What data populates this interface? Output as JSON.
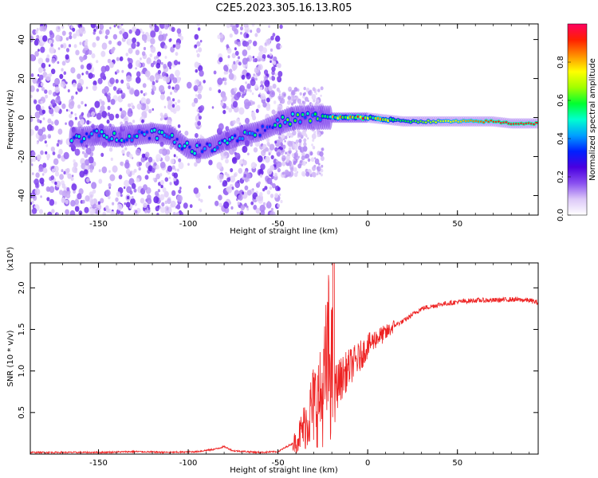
{
  "figure_title": "C2E5.2023.305.16.13.R05",
  "chart_data": [
    {
      "type": "heatmap",
      "title": "C2E5.2023.305.16.13.R05",
      "xlabel": "Height of straight line (km)",
      "ylabel": "Frequency (Hz)",
      "xlim": [
        -188,
        95
      ],
      "ylim": [
        -50,
        48
      ],
      "xticks": [
        -150,
        -100,
        -50,
        0,
        50
      ],
      "yticks": [
        -40,
        -20,
        0,
        20,
        40
      ],
      "colorbar": {
        "label": "Normalized spectral amplitude",
        "range": [
          0,
          1
        ],
        "ticks": [
          0.0,
          0.2,
          0.4,
          0.6,
          0.8
        ],
        "colormap": [
          "#ffffff",
          "#dcc8f8",
          "#8a50f0",
          "#4a00e0",
          "#0020ff",
          "#00a0ff",
          "#00ffd0",
          "#00ff30",
          "#a0ff00",
          "#ffff00",
          "#ff9000",
          "#ff2000",
          "#ff0060"
        ]
      },
      "ridge": {
        "x": [
          -160,
          -150,
          -140,
          -130,
          -120,
          -110,
          -100,
          -90,
          -80,
          -70,
          -60,
          -50,
          -40,
          -30,
          -20,
          -10,
          0,
          10,
          20,
          30,
          40,
          50,
          60,
          70,
          80,
          95
        ],
        "y": [
          -10,
          -9,
          -10,
          -9,
          -8,
          -9,
          -16,
          -16,
          -12,
          -9,
          -7,
          -3,
          0,
          0,
          0,
          0,
          0,
          -1,
          -2,
          -2,
          -2,
          -2,
          -2,
          -2,
          -3,
          -3
        ]
      },
      "grid": false,
      "legend": "none"
    },
    {
      "type": "line",
      "title": "",
      "xlabel": "Height of straight line (km)",
      "ylabel": "SNR (10 * v/v)",
      "scale_note": "(x10⁴)",
      "xlim": [
        -188,
        95
      ],
      "ylim": [
        0,
        2.3
      ],
      "xticks": [
        -150,
        -100,
        -50,
        0,
        50
      ],
      "yticks": [
        0.5,
        1.0,
        1.5,
        2.0
      ],
      "line_color": "#ee2222",
      "series": [
        {
          "x": [
            -188,
            -170,
            -150,
            -130,
            -110,
            -95,
            -85,
            -80,
            -75,
            -60,
            -50,
            -40,
            -35,
            -30,
            -25,
            -22,
            -20,
            -18,
            -15,
            -10,
            -5,
            0,
            5,
            10,
            15,
            20,
            25,
            30,
            40,
            50,
            60,
            70,
            80,
            90,
            95
          ],
          "values": [
            0.02,
            0.02,
            0.02,
            0.03,
            0.02,
            0.03,
            0.06,
            0.09,
            0.04,
            0.02,
            0.03,
            0.15,
            0.35,
            0.6,
            0.7,
            1.2,
            1.0,
            0.8,
            0.9,
            1.05,
            1.15,
            1.3,
            1.4,
            1.45,
            1.55,
            1.6,
            1.68,
            1.75,
            1.8,
            1.83,
            1.85,
            1.85,
            1.86,
            1.85,
            1.82
          ]
        }
      ],
      "grid": false,
      "legend": "none"
    }
  ]
}
